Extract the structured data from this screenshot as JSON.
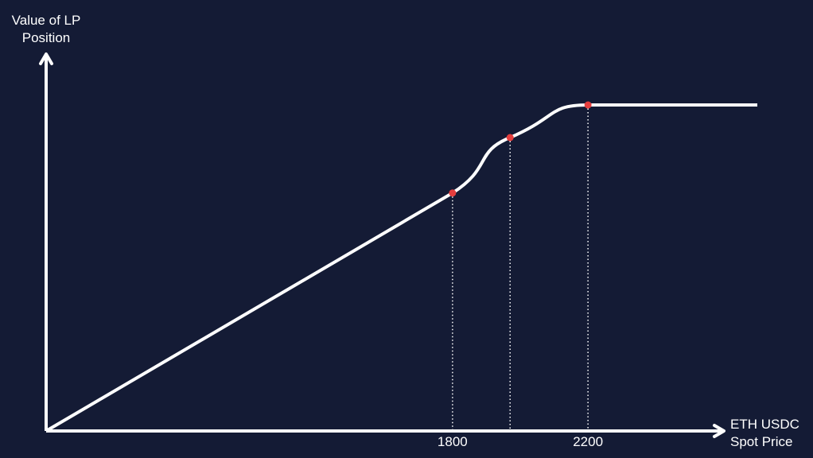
{
  "chart_data": {
    "type": "line",
    "title": "",
    "ylabel_lines": [
      "Value of LP",
      "Position"
    ],
    "xlabel_lines": [
      "ETH USDC",
      "Spot Price"
    ],
    "x_ticks": [
      {
        "x": 1800,
        "label": "1800"
      },
      {
        "x": 2200,
        "label": "2200"
      }
    ],
    "xlim": [
      600,
      2700
    ],
    "ylim": [
      0,
      1.0
    ],
    "grid": false,
    "legend": false,
    "series": [
      {
        "style": "linear-then-curved-then-flat",
        "x": [
          600,
          1800,
          1970,
          2200,
          2700
        ],
        "y": [
          0,
          0.73,
          0.9,
          1.0,
          1.0
        ]
      }
    ],
    "markers": [
      {
        "x": 1800,
        "y": 0.73
      },
      {
        "x": 1970,
        "y": 0.9
      },
      {
        "x": 2200,
        "y": 1.0
      }
    ],
    "colors": {
      "background": "#141b35",
      "axes": "#ffffff",
      "line": "#ffffff",
      "marker": "#e53e3e",
      "guide": "#ffffff"
    }
  }
}
